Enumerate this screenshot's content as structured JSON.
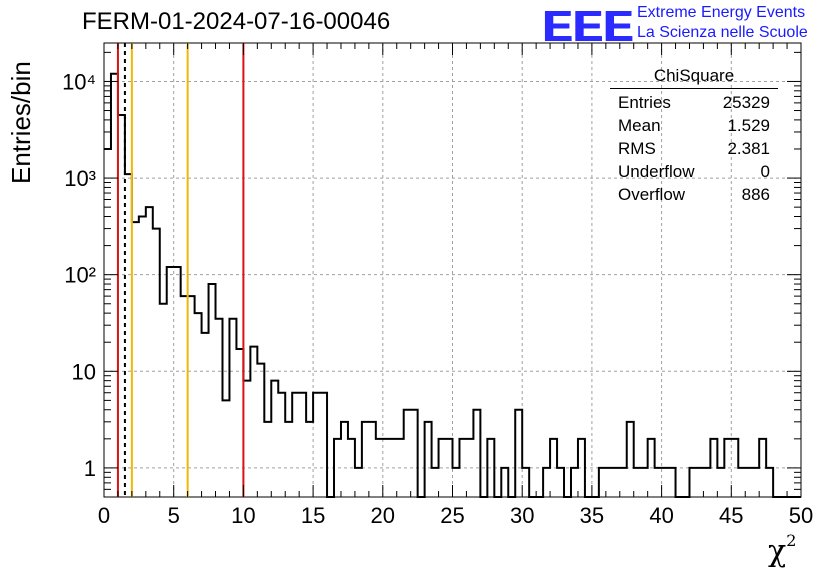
{
  "header": {
    "title": "FERM-01-2024-07-16-00046",
    "logo_text": "EEE",
    "logo_line1": "Extreme Energy Events",
    "logo_line2": "La Scienza nelle Scuole"
  },
  "stats": {
    "name": "ChiSquare",
    "rows": [
      {
        "label": "Entries",
        "value": "25329"
      },
      {
        "label": "Mean",
        "value": "1.529"
      },
      {
        "label": "RMS",
        "value": "2.381"
      },
      {
        "label": "Underflow",
        "value": "0"
      },
      {
        "label": "Overflow",
        "value": "886"
      }
    ]
  },
  "axes": {
    "ylabel": "Entries/bin",
    "xlabel_base": "χ",
    "xlabel_sup": "2"
  },
  "chart_data": {
    "type": "histogram",
    "scale_y": "log",
    "xlim": [
      0,
      50
    ],
    "ylim": [
      0.5,
      25000
    ],
    "bin_width": 0.5,
    "x_ticks": [
      0,
      5,
      10,
      15,
      20,
      25,
      30,
      35,
      40,
      45,
      50
    ],
    "x_tick_labels": [
      "0",
      "5",
      "10",
      "15",
      "20",
      "25",
      "30",
      "35",
      "40",
      "45",
      "50"
    ],
    "y_ticks": [
      1,
      10,
      100,
      1000,
      10000
    ],
    "y_tick_labels": [
      "1",
      "10",
      "10²",
      "10³",
      "10⁴"
    ],
    "grid": true,
    "bin_contents": [
      2000,
      12000,
      4500,
      1100,
      350,
      400,
      500,
      300,
      50,
      120,
      120,
      60,
      60,
      40,
      25,
      80,
      35,
      5,
      35,
      17,
      8,
      18,
      12,
      3,
      8,
      6,
      3,
      6,
      6,
      3,
      6,
      6,
      0,
      2,
      3,
      2,
      1,
      3,
      3,
      2,
      2,
      2,
      2,
      4,
      4,
      0,
      3,
      1,
      2,
      2,
      1,
      2,
      2,
      4,
      0,
      2,
      0,
      1,
      0,
      4,
      1,
      0,
      0,
      1,
      2,
      1,
      0,
      1,
      2,
      0,
      0,
      1,
      1,
      1,
      1,
      3,
      1,
      1,
      2,
      1,
      1,
      1,
      0,
      0,
      1,
      1,
      1,
      2,
      1,
      2,
      2,
      1,
      1,
      1,
      2,
      1,
      0,
      0,
      0,
      0
    ],
    "vertical_lines": [
      {
        "x": 1,
        "color": "#dd1111",
        "style": "solid"
      },
      {
        "x": 1.5,
        "color": "#000000",
        "style": "dashed"
      },
      {
        "x": 2,
        "color": "#f0b800",
        "style": "solid"
      },
      {
        "x": 6,
        "color": "#f0b800",
        "style": "solid"
      },
      {
        "x": 10,
        "color": "#dd1111",
        "style": "solid"
      }
    ]
  }
}
